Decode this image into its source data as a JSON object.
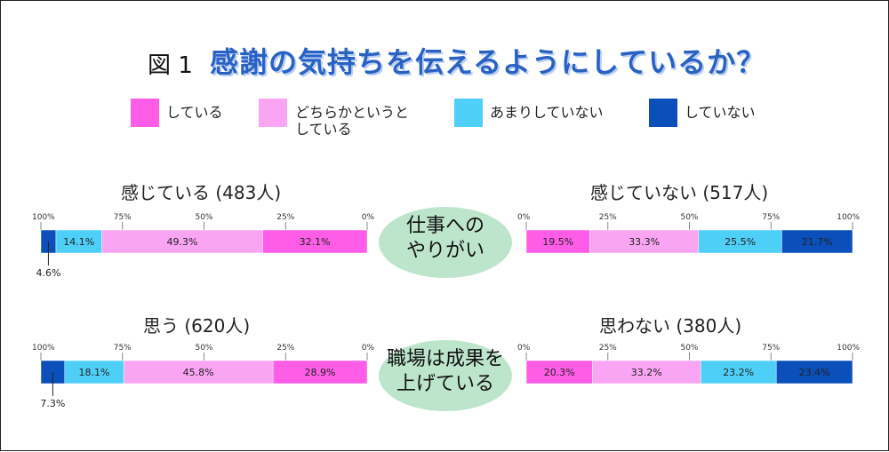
{
  "title_prefix": "図 1",
  "title": "感謝の気持ちを伝えるようにしているか？",
  "legend": [
    {
      "label": "している",
      "color": "#ff5ce8"
    },
    {
      "label": "どちらかというと\nしている",
      "color": "#f9a5f4"
    },
    {
      "label": "あまりしていない",
      "color": "#4ecff8"
    },
    {
      "label": "していない",
      "color": "#0a4fba"
    }
  ],
  "ellipses": [
    {
      "label": "仕事への\nやりがい"
    },
    {
      "label": "職場は成果を\n上げている"
    }
  ],
  "chart_data": [
    {
      "type": "bar",
      "title": "感じている (483人)",
      "direction": "right-to-left",
      "ticks": [
        "100%",
        "75%",
        "50%",
        "25%",
        "0%"
      ],
      "series": [
        {
          "name": "している",
          "value": 32.1,
          "label": "32.1%"
        },
        {
          "name": "どちらかというとしている",
          "value": 49.3,
          "label": "49.3%"
        },
        {
          "name": "あまりしていない",
          "value": 14.1,
          "label": "14.1%"
        },
        {
          "name": "していない",
          "value": 4.6,
          "label": "4.6%"
        }
      ]
    },
    {
      "type": "bar",
      "title": "感じていない (517人)",
      "direction": "left-to-right",
      "ticks": [
        "0%",
        "25%",
        "50%",
        "75%",
        "100%"
      ],
      "series": [
        {
          "name": "している",
          "value": 19.5,
          "label": "19.5%"
        },
        {
          "name": "どちらかというとしている",
          "value": 33.3,
          "label": "33.3%"
        },
        {
          "name": "あまりしていない",
          "value": 25.5,
          "label": "25.5%"
        },
        {
          "name": "していない",
          "value": 21.7,
          "label": "21.7%"
        }
      ]
    },
    {
      "type": "bar",
      "title": "思う (620人)",
      "direction": "right-to-left",
      "ticks": [
        "100%",
        "75%",
        "50%",
        "25%",
        "0%"
      ],
      "series": [
        {
          "name": "している",
          "value": 28.9,
          "label": "28.9%"
        },
        {
          "name": "どちらかというとしている",
          "value": 45.8,
          "label": "45.8%"
        },
        {
          "name": "あまりしていない",
          "value": 18.1,
          "label": "18.1%"
        },
        {
          "name": "していない",
          "value": 7.3,
          "label": "7.3%"
        }
      ]
    },
    {
      "type": "bar",
      "title": "思わない (380人)",
      "direction": "left-to-right",
      "ticks": [
        "0%",
        "25%",
        "50%",
        "75%",
        "100%"
      ],
      "series": [
        {
          "name": "している",
          "value": 20.3,
          "label": "20.3%"
        },
        {
          "name": "どちらかというとしている",
          "value": 33.2,
          "label": "33.2%"
        },
        {
          "name": "あまりしていない",
          "value": 23.2,
          "label": "23.2%"
        },
        {
          "name": "していない",
          "value": 23.4,
          "label": "23.4%"
        }
      ]
    }
  ]
}
